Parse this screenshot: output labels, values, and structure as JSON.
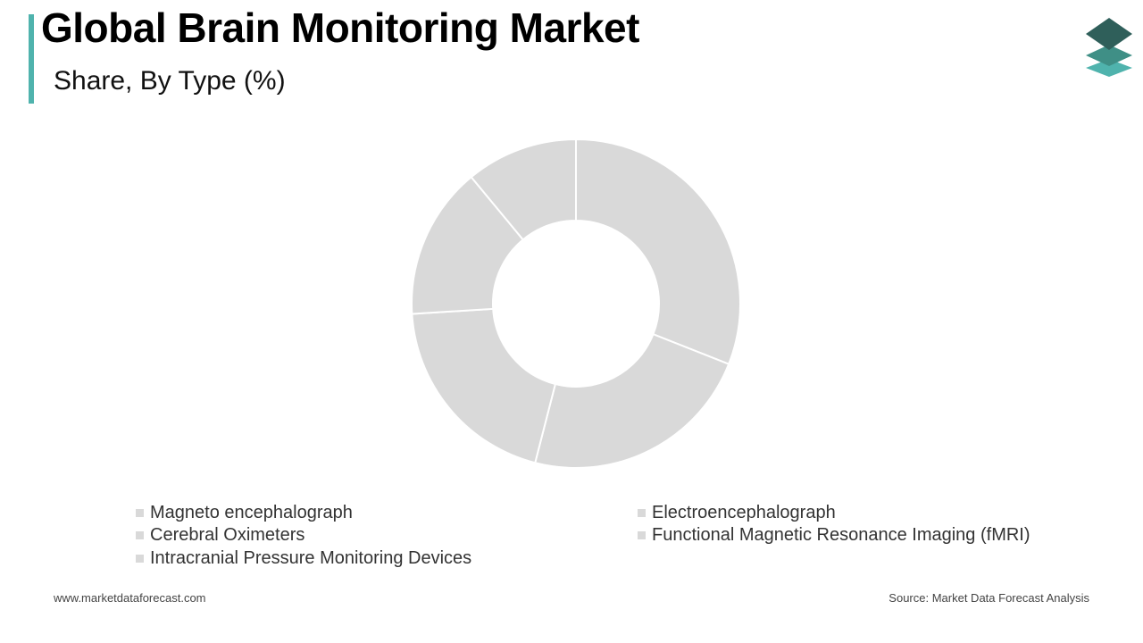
{
  "header": {
    "title": "Global Brain Monitoring Market",
    "subtitle": "Share, By Type (%)"
  },
  "colors": {
    "accent": "#4fb3ad",
    "slice": "#d9d9d9",
    "slice_border": "#ffffff",
    "logo_top": "#2f5f5a",
    "logo_mid": "#3f8f86",
    "logo_bottom": "#4fb3ad"
  },
  "chart_data": {
    "type": "pie",
    "donut": true,
    "title": "Global Brain Monitoring Market",
    "subtitle": "Share, By Type (%)",
    "categories": [
      "Magneto encephalograph",
      "Electroencephalograph",
      "Cerebral Oximeters",
      "Functional Magnetic Resonance Imaging (fMRI)",
      "Intracranial Pressure Monitoring Devices"
    ],
    "values": [
      31,
      23,
      20,
      15,
      11
    ],
    "legend_position": "bottom",
    "data_labels": false
  },
  "footer": {
    "website": "www.marketdataforecast.com",
    "source": "Source: Market Data Forecast Analysis"
  },
  "logo": {
    "icon": "stacked-layers-icon"
  }
}
